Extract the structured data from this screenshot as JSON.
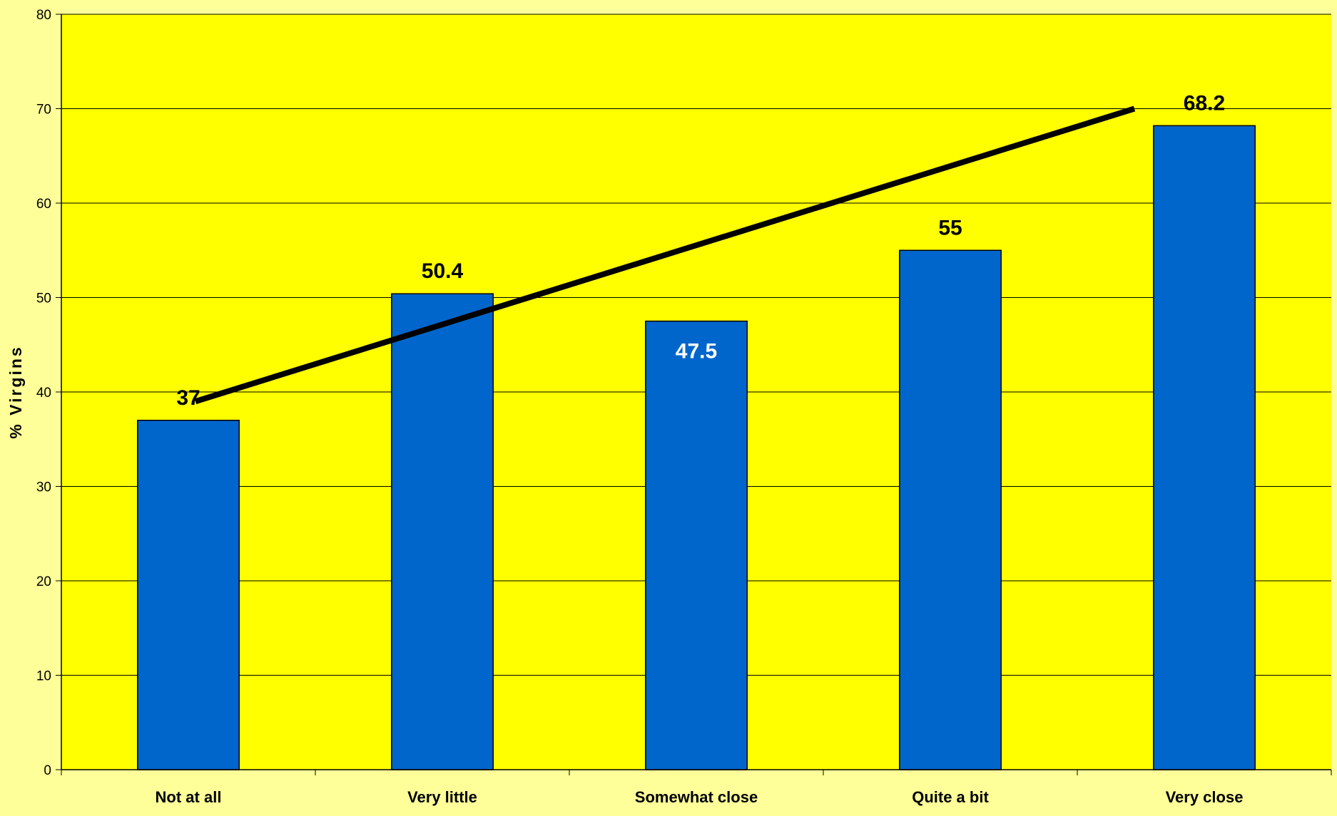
{
  "chart_data": {
    "type": "bar",
    "title": "",
    "xlabel": "",
    "ylabel": "% Virgins",
    "categories": [
      "Not at all",
      "Very little",
      "Somewhat close",
      "Quite a bit",
      "Very close"
    ],
    "series": [
      {
        "values": [
          37,
          50.4,
          47.5,
          55,
          68.2
        ],
        "labels": [
          "37",
          "50.4",
          "47.5",
          "55",
          "68.2"
        ],
        "color": "#0066CC"
      }
    ],
    "label_placement": [
      "above",
      "above",
      "inside",
      "above",
      "above"
    ],
    "trendline": {
      "type": "linear",
      "start": {
        "category": "Not at all",
        "value": 39
      },
      "end": {
        "category": "Very close",
        "value": 70
      },
      "color": "#000000"
    },
    "ylim": [
      0,
      80
    ],
    "yticks": [
      0,
      10,
      20,
      30,
      40,
      50,
      60,
      70,
      80
    ],
    "ytick_labels": [
      "0",
      "10",
      "20",
      "30",
      "40",
      "50",
      "60",
      "70",
      "80"
    ],
    "grid": "horizontal",
    "legend": "none",
    "colors": {
      "page_background": "#FFFF99",
      "plot_background": "#FFFF00",
      "bar_fill": "#0066CC",
      "bar_stroke": "#000000",
      "grid": "#000000",
      "label_outside": "#000000",
      "label_inside": "#FFFFFF"
    }
  }
}
